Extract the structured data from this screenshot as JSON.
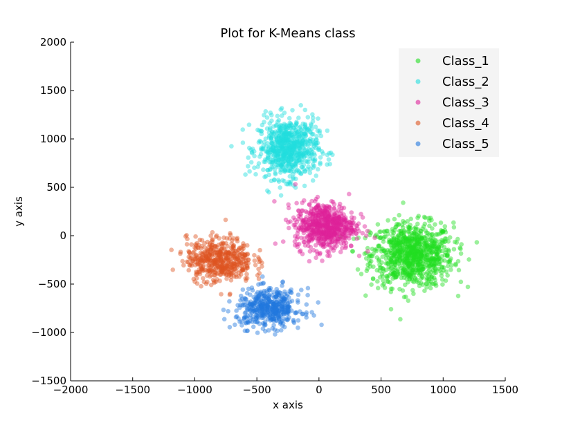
{
  "chart_data": {
    "type": "scatter",
    "title": "Plot for K-Means class",
    "xlabel": "x axis",
    "ylabel": "y axis",
    "xlim": [
      -2000,
      1500
    ],
    "ylim": [
      -1500,
      2000
    ],
    "xticks": [
      -2000,
      -1500,
      -1000,
      -500,
      0,
      500,
      1000,
      1500
    ],
    "yticks": [
      -1500,
      -1000,
      -500,
      0,
      500,
      1000,
      1500,
      2000
    ],
    "xtick_labels": [
      "−2000",
      "−1500",
      "−1000",
      "−500",
      "0",
      "500",
      "1000",
      "1500"
    ],
    "ytick_labels": [
      "−1500",
      "−1000",
      "−500",
      "0",
      "500",
      "1000",
      "1500",
      "2000"
    ],
    "grid": false,
    "legend_position": "top-right",
    "series": [
      {
        "name": "Class_1",
        "color": "#22dd22",
        "approx_center": [
          750,
          -200
        ],
        "approx_spread": [
          300,
          300
        ],
        "approx_count": 900
      },
      {
        "name": "Class_2",
        "color": "#22dddd",
        "approx_center": [
          -250,
          900
        ],
        "approx_spread": [
          220,
          280
        ],
        "approx_count": 700
      },
      {
        "name": "Class_3",
        "color": "#dd2299",
        "approx_center": [
          50,
          100
        ],
        "approx_spread": [
          220,
          220
        ],
        "approx_count": 650
      },
      {
        "name": "Class_4",
        "color": "#dd5522",
        "approx_center": [
          -800,
          -250
        ],
        "approx_spread": [
          240,
          210
        ],
        "approx_count": 500
      },
      {
        "name": "Class_5",
        "color": "#2277dd",
        "approx_center": [
          -400,
          -750
        ],
        "approx_spread": [
          240,
          180
        ],
        "approx_count": 450
      }
    ]
  }
}
